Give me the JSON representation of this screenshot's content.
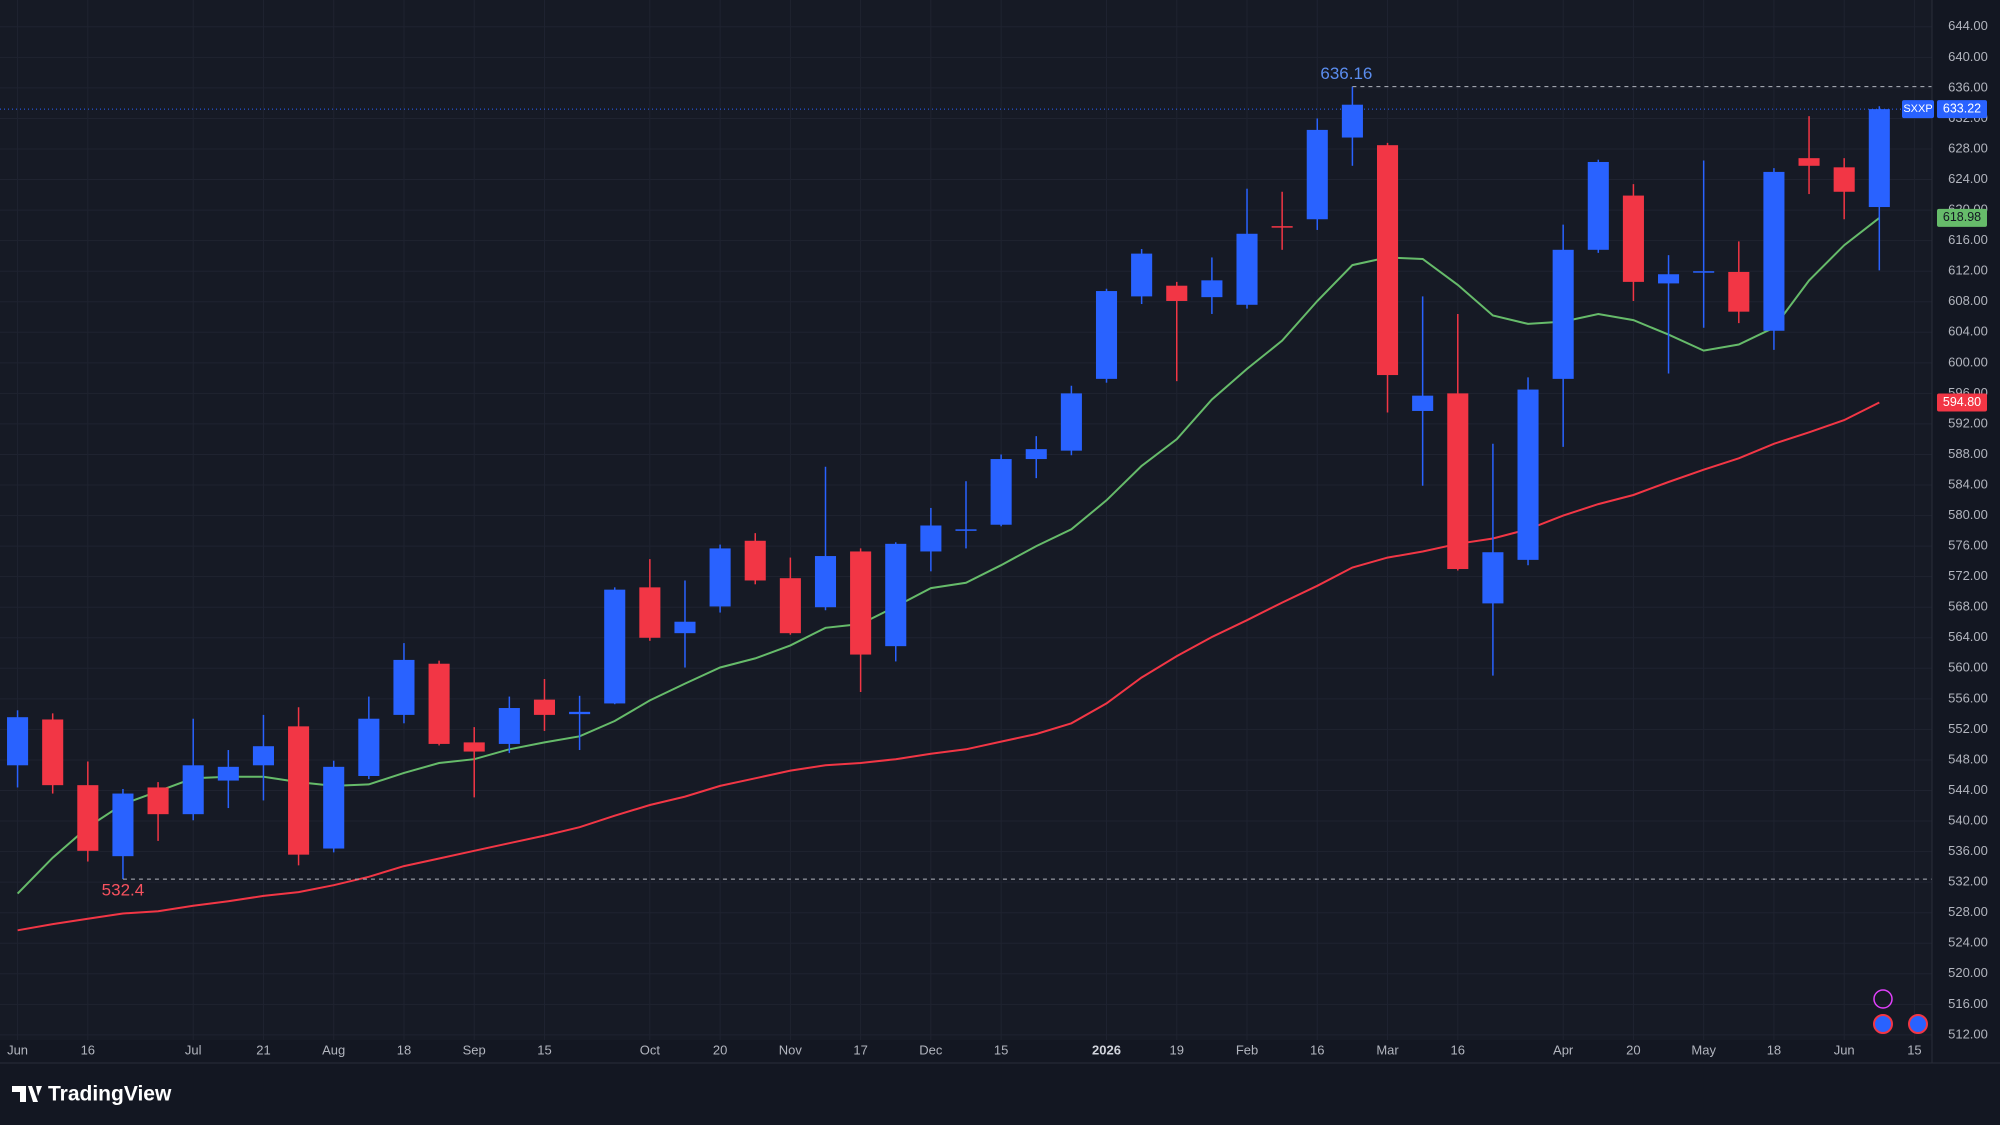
{
  "chart_data": {
    "type": "candlestick",
    "symbol": "SXXP",
    "categories": [
      "Jun",
      null,
      "16",
      null,
      null,
      "Jul",
      null,
      "21",
      null,
      "Aug",
      null,
      "18",
      null,
      "Sep",
      null,
      "15",
      null,
      null,
      "Oct",
      null,
      "20",
      null,
      "Nov",
      null,
      "17",
      null,
      "Dec",
      null,
      "15",
      null,
      null,
      "2026",
      null,
      "19",
      null,
      "Feb",
      null,
      "16",
      null,
      "Mar",
      null,
      "16",
      null,
      null,
      "Apr",
      null,
      "20",
      null,
      "May",
      null,
      "18",
      null,
      "Jun",
      null,
      "15"
    ],
    "open": [
      547.3,
      553.3,
      544.7,
      535.4,
      544.4,
      540.9,
      545.3,
      547.3,
      552.4,
      536.4,
      545.9,
      553.9,
      560.6,
      550.3,
      550.1,
      555.9,
      554.0,
      555.4,
      570.6,
      564.6,
      568.1,
      576.7,
      571.8,
      568.0,
      575.3,
      562.9,
      575.3,
      578.0,
      578.8,
      587.4,
      588.5,
      597.9,
      608.7,
      610.1,
      608.6,
      607.6,
      617.9,
      618.8,
      629.5,
      628.5,
      593.7,
      596.0,
      568.5,
      574.2,
      597.9,
      614.8,
      621.9,
      610.4,
      611.8,
      611.9,
      604.2,
      626.8,
      625.6,
      620.4,
      null
    ],
    "high": [
      554.5,
      554.1,
      547.8,
      544.2,
      545.1,
      553.4,
      549.3,
      553.9,
      554.9,
      547.9,
      556.3,
      563.3,
      561.0,
      552.3,
      556.3,
      558.6,
      556.4,
      570.6,
      574.3,
      571.5,
      576.2,
      577.7,
      574.5,
      586.4,
      575.7,
      576.5,
      581.0,
      584.5,
      588.0,
      590.4,
      597.0,
      609.7,
      614.9,
      610.6,
      613.8,
      622.8,
      622.4,
      632.0,
      636.16,
      628.8,
      608.7,
      606.4,
      589.4,
      598.1,
      618.1,
      626.6,
      623.4,
      614.1,
      626.5,
      615.9,
      625.5,
      632.3,
      626.8,
      633.6,
      null
    ],
    "low": [
      544.4,
      543.6,
      534.7,
      532.4,
      537.4,
      540.1,
      541.7,
      542.7,
      534.2,
      535.9,
      545.5,
      552.8,
      549.9,
      543.1,
      548.9,
      551.8,
      549.3,
      555.3,
      563.6,
      560.1,
      567.3,
      571.0,
      564.4,
      567.6,
      556.9,
      560.9,
      572.7,
      575.7,
      578.6,
      584.9,
      587.9,
      597.4,
      607.7,
      597.6,
      606.4,
      607.1,
      614.8,
      617.4,
      625.8,
      593.5,
      583.9,
      572.8,
      559.05,
      573.5,
      589.0,
      614.4,
      608.1,
      598.6,
      604.6,
      605.2,
      601.7,
      622.1,
      618.8,
      612.1,
      null
    ],
    "close": [
      553.6,
      544.7,
      536.1,
      543.6,
      540.9,
      547.3,
      547.1,
      549.8,
      535.6,
      547.1,
      553.4,
      561.1,
      550.1,
      549.1,
      554.8,
      553.9,
      554.3,
      570.3,
      564.0,
      566.1,
      575.7,
      571.5,
      564.6,
      574.7,
      561.8,
      576.3,
      578.7,
      578.2,
      587.4,
      588.7,
      596.0,
      609.4,
      614.3,
      608.1,
      610.8,
      616.9,
      617.7,
      630.5,
      633.8,
      598.4,
      595.7,
      573.0,
      575.2,
      596.5,
      614.8,
      626.3,
      610.6,
      611.6,
      612.0,
      606.7,
      625.0,
      625.8,
      622.4,
      633.22,
      null
    ],
    "up_color": "#2962ff",
    "down_color": "#f23645",
    "series": [
      {
        "color": "#66bb6a",
        "values": [
          530.5,
          535.2,
          539.2,
          542.2,
          543.9,
          545.6,
          545.8,
          545.8,
          545.1,
          544.6,
          544.8,
          546.3,
          547.6,
          548.1,
          549.4,
          550.3,
          551.1,
          553.1,
          555.8,
          558.0,
          560.1,
          561.3,
          563.0,
          565.3,
          565.8,
          568.1,
          570.5,
          571.2,
          573.5,
          576.0,
          578.2,
          582.0,
          586.5,
          590.0,
          595.2,
          599.2,
          602.9,
          608.1,
          612.8,
          613.8,
          613.6,
          610.2,
          606.2,
          605.1,
          605.4,
          606.4,
          605.6,
          603.7,
          601.6,
          602.4,
          604.6,
          610.8,
          615.4,
          618.98,
          null
        ]
      },
      {
        "color": "#f23645",
        "values": [
          525.7,
          526.5,
          527.2,
          527.9,
          528.2,
          528.9,
          529.5,
          530.2,
          530.7,
          531.6,
          532.7,
          534.1,
          535.1,
          536.1,
          537.1,
          538.1,
          539.2,
          540.7,
          542.1,
          543.2,
          544.6,
          545.6,
          546.6,
          547.3,
          547.6,
          548.1,
          548.8,
          549.4,
          550.4,
          551.4,
          552.8,
          555.4,
          558.8,
          561.6,
          564.1,
          566.3,
          568.6,
          570.8,
          573.2,
          574.5,
          575.3,
          576.3,
          577.0,
          578.2,
          580.0,
          581.5,
          582.7,
          584.4,
          586.0,
          587.5,
          589.4,
          590.9,
          592.5,
          594.8,
          null
        ],
        "value_labels": [
          null,
          null,
          null,
          null,
          null,
          null,
          null,
          null,
          null,
          null,
          null,
          null,
          null,
          null,
          null,
          null,
          null,
          null,
          null,
          null,
          null,
          null,
          null,
          null,
          null,
          null,
          null,
          null,
          null,
          null,
          null,
          null,
          null,
          null,
          null,
          null,
          null,
          null,
          null,
          null,
          null,
          null,
          null,
          null,
          null,
          null,
          null,
          null,
          null,
          null,
          null,
          null,
          null,
          "594.80",
          null
        ]
      }
    ],
    "ylim": [
      511.33,
      647.51
    ],
    "yticks": [
      {
        "value": 512,
        "label": "512.00"
      },
      {
        "value": 516,
        "label": "516.00"
      },
      {
        "value": 520,
        "label": "520.00"
      },
      {
        "value": 524,
        "label": "524.00"
      },
      {
        "value": 528,
        "label": "528.00"
      },
      {
        "value": 532,
        "label": "532.00"
      },
      {
        "value": 536,
        "label": "536.00"
      },
      {
        "value": 540,
        "label": "540.00"
      },
      {
        "value": 544,
        "label": "544.00"
      },
      {
        "value": 548,
        "label": "548.00"
      },
      {
        "value": 552,
        "label": "552.00"
      },
      {
        "value": 556,
        "label": "556.00"
      },
      {
        "value": 560,
        "label": "560.00"
      },
      {
        "value": 564,
        "label": "564.00"
      },
      {
        "value": 568,
        "label": "568.00"
      },
      {
        "value": 572,
        "label": "572.00"
      },
      {
        "value": 576,
        "label": "576.00"
      },
      {
        "value": 580,
        "label": "580.00"
      },
      {
        "value": 584,
        "label": "584.00"
      },
      {
        "value": 588,
        "label": "588.00"
      },
      {
        "value": 592,
        "label": "592.00"
      },
      {
        "value": 596,
        "label": "596.00"
      },
      {
        "value": 600,
        "label": "600.00"
      },
      {
        "value": 604,
        "label": "604.00"
      },
      {
        "value": 608,
        "label": "608.00"
      },
      {
        "value": 612,
        "label": "612.00"
      },
      {
        "value": 616,
        "label": "616.00"
      },
      {
        "value": 620,
        "label": "620.00"
      },
      {
        "value": 624,
        "label": "624.00"
      },
      {
        "value": 628,
        "label": "628.00"
      },
      {
        "value": 632,
        "label": "632.00"
      },
      {
        "value": 636,
        "label": "636.00"
      },
      {
        "value": 640,
        "label": "640.00"
      },
      {
        "value": 644,
        "label": "644.00"
      }
    ],
    "grid": true
  },
  "footer": {
    "brand": "TradingView"
  }
}
